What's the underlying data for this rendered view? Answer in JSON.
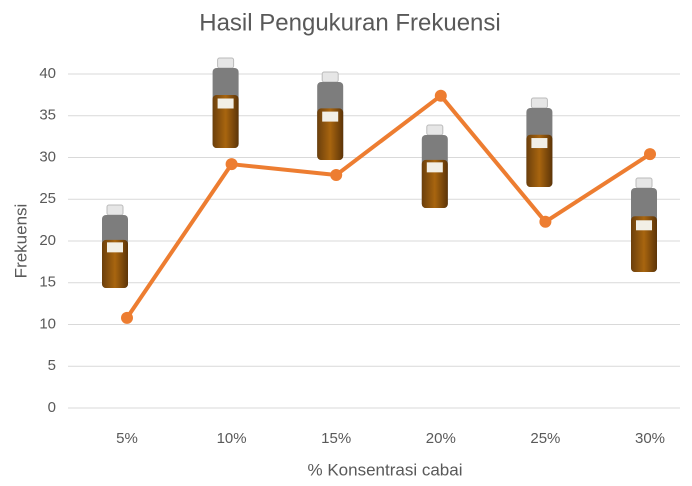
{
  "chart_data": {
    "type": "line",
    "title": "Hasil Pengukuran Frekuensi",
    "x_label": "% Konsentrasi cabai",
    "y_label": "Frekuensi",
    "categories": [
      "5%",
      "10%",
      "15%",
      "20%",
      "25%",
      "30%"
    ],
    "series": [
      {
        "name": "Frekuensi",
        "color": "#ed7d31",
        "values": [
          10.8,
          29.2,
          27.9,
          37.4,
          22.3,
          30.4
        ]
      }
    ],
    "ylim": [
      0,
      40
    ],
    "yticks": [
      0,
      5,
      10,
      15,
      20,
      25,
      30,
      35,
      40
    ],
    "grid": true
  }
}
